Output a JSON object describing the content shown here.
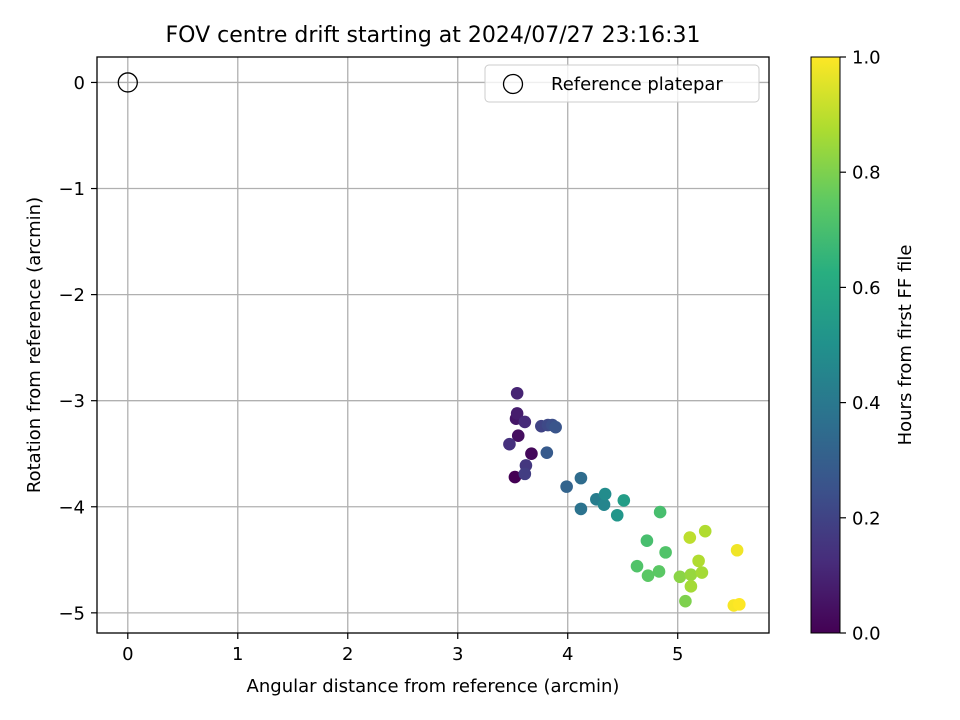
{
  "chart_data": {
    "type": "scatter",
    "title": "FOV centre drift starting at 2024/07/27 23:16:31",
    "xlabel": "Angular distance from reference (arcmin)",
    "ylabel": "Rotation from reference (arcmin)",
    "xlim": [
      -0.28,
      5.83
    ],
    "ylim": [
      -5.19,
      0.24
    ],
    "xticks": [
      0,
      1,
      2,
      3,
      4,
      5
    ],
    "yticks": [
      0,
      -1,
      -2,
      -3,
      -4,
      -5
    ],
    "xtick_labels": [
      "0",
      "1",
      "2",
      "3",
      "4",
      "5"
    ],
    "ytick_labels": [
      "0",
      "−1",
      "−2",
      "−3",
      "−4",
      "−5"
    ],
    "grid": true,
    "legend": {
      "position": "top-right",
      "entries": [
        "Reference platepar"
      ]
    },
    "reference": {
      "x": 0,
      "y": 0,
      "label": "Reference platepar"
    },
    "colorbar": {
      "label": "Hours from first FF file",
      "colormap": "viridis",
      "range": [
        0.0,
        1.0
      ],
      "ticks": [
        0.0,
        0.2,
        0.4,
        0.6,
        0.8,
        1.0
      ],
      "tick_labels": [
        "0.0",
        "0.2",
        "0.4",
        "0.6",
        "0.8",
        "1.0"
      ]
    },
    "points": [
      {
        "x": 3.52,
        "y": -3.72,
        "c": 0.0
      },
      {
        "x": 3.67,
        "y": -3.5,
        "c": 0.02
      },
      {
        "x": 3.55,
        "y": -3.33,
        "c": 0.04
      },
      {
        "x": 3.53,
        "y": -3.17,
        "c": 0.06
      },
      {
        "x": 3.54,
        "y": -3.12,
        "c": 0.08
      },
      {
        "x": 3.54,
        "y": -2.93,
        "c": 0.1
      },
      {
        "x": 3.61,
        "y": -3.2,
        "c": 0.12
      },
      {
        "x": 3.47,
        "y": -3.41,
        "c": 0.14
      },
      {
        "x": 3.62,
        "y": -3.61,
        "c": 0.16
      },
      {
        "x": 3.61,
        "y": -3.69,
        "c": 0.18
      },
      {
        "x": 3.76,
        "y": -3.24,
        "c": 0.2
      },
      {
        "x": 3.82,
        "y": -3.23,
        "c": 0.22
      },
      {
        "x": 3.86,
        "y": -3.23,
        "c": 0.24
      },
      {
        "x": 3.89,
        "y": -3.25,
        "c": 0.26
      },
      {
        "x": 3.81,
        "y": -3.49,
        "c": 0.28
      },
      {
        "x": 3.99,
        "y": -3.81,
        "c": 0.32
      },
      {
        "x": 4.12,
        "y": -3.73,
        "c": 0.35
      },
      {
        "x": 4.12,
        "y": -4.02,
        "c": 0.38
      },
      {
        "x": 4.26,
        "y": -3.93,
        "c": 0.42
      },
      {
        "x": 4.33,
        "y": -3.98,
        "c": 0.45
      },
      {
        "x": 4.34,
        "y": -3.88,
        "c": 0.48
      },
      {
        "x": 4.45,
        "y": -4.08,
        "c": 0.52
      },
      {
        "x": 4.51,
        "y": -3.94,
        "c": 0.55
      },
      {
        "x": 4.84,
        "y": -4.05,
        "c": 0.7
      },
      {
        "x": 4.72,
        "y": -4.32,
        "c": 0.7
      },
      {
        "x": 4.63,
        "y": -4.56,
        "c": 0.72
      },
      {
        "x": 4.89,
        "y": -4.43,
        "c": 0.72
      },
      {
        "x": 4.73,
        "y": -4.65,
        "c": 0.74
      },
      {
        "x": 4.83,
        "y": -4.61,
        "c": 0.74
      },
      {
        "x": 5.07,
        "y": -4.89,
        "c": 0.8
      },
      {
        "x": 5.02,
        "y": -4.66,
        "c": 0.82
      },
      {
        "x": 5.12,
        "y": -4.64,
        "c": 0.84
      },
      {
        "x": 5.12,
        "y": -4.75,
        "c": 0.86
      },
      {
        "x": 5.22,
        "y": -4.62,
        "c": 0.86
      },
      {
        "x": 5.19,
        "y": -4.51,
        "c": 0.88
      },
      {
        "x": 5.11,
        "y": -4.29,
        "c": 0.9
      },
      {
        "x": 5.25,
        "y": -4.23,
        "c": 0.88
      },
      {
        "x": 5.54,
        "y": -4.41,
        "c": 0.98
      },
      {
        "x": 5.51,
        "y": -4.93,
        "c": 0.99
      },
      {
        "x": 5.56,
        "y": -4.92,
        "c": 1.0
      }
    ]
  }
}
